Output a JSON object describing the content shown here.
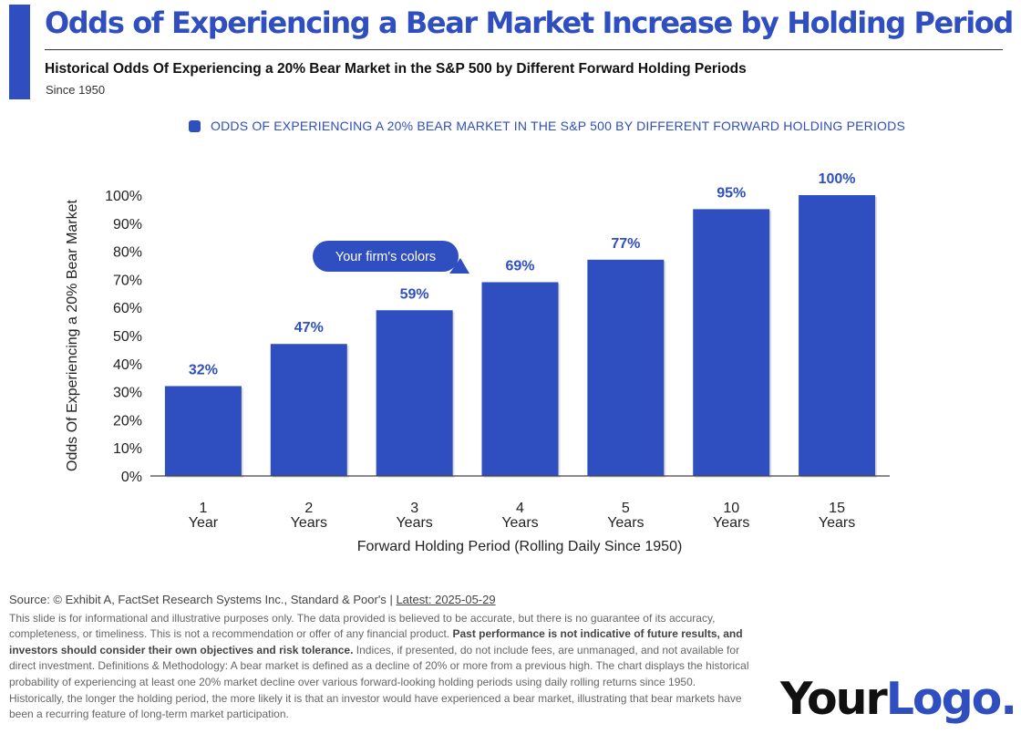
{
  "header": {
    "title": "Odds of Experiencing a Bear Market Increase by Holding Period",
    "subtitle": "Historical Odds Of Experiencing a 20% Bear Market in the S&P 500 by Different Forward Holding Periods",
    "since": "Since 1950"
  },
  "colors": {
    "accent": "#2f4ebf",
    "bar": "#2f4ebf",
    "text": "#222222"
  },
  "chart_data": {
    "type": "bar",
    "legend": "ODDS OF EXPERIENCING A 20% BEAR MARKET IN THE S&P 500 BY DIFFERENT FORWARD HOLDING PERIODS",
    "legend_position": "top",
    "categories": [
      [
        "1",
        "Year"
      ],
      [
        "2",
        "Years"
      ],
      [
        "3",
        "Years"
      ],
      [
        "4",
        "Years"
      ],
      [
        "5",
        "Years"
      ],
      [
        "10",
        "Years"
      ],
      [
        "15",
        "Years"
      ]
    ],
    "values": [
      32,
      47,
      59,
      69,
      77,
      95,
      100
    ],
    "value_labels": [
      "32%",
      "47%",
      "59%",
      "69%",
      "77%",
      "95%",
      "100%"
    ],
    "ylabel": "Odds Of Experiencing a 20% Bear Market",
    "xlabel": "Forward Holding Period (Rolling Daily Since 1950)",
    "ylim": [
      0,
      100
    ],
    "yticks": [
      "0%",
      "10%",
      "20%",
      "30%",
      "40%",
      "50%",
      "60%",
      "70%",
      "80%",
      "90%",
      "100%"
    ],
    "grid": false,
    "annotation": "Your firm's colors"
  },
  "footer": {
    "source": "Source: © Exhibit A, FactSet Research Systems Inc., Standard & Poor's",
    "separator": "|",
    "latest": "Latest: 2025-05-29",
    "disclaimer_1": "This slide is for informational and illustrative purposes only. The data provided is believed to be accurate, but there is no guarantee of its accuracy, completeness, or timeliness. This is not a recommendation or offer of any financial product.",
    "disclaimer_bold": "Past performance is not indicative of future results, and investors should consider their own objectives and risk tolerance.",
    "disclaimer_2": "Indices, if presented, do not include fees, are unmanaged, and not available for direct investment. Definitions & Methodology: A bear market is defined as a decline of 20% or more from a previous high. The chart displays the historical probability of experiencing at least one 20% market decline over various forward-looking holding periods using daily rolling returns since 1950. Historically, the longer the holding period, the more likely it is that an investor would have experienced a bear market, illustrating that bear markets have been a recurring feature of long-term market participation."
  },
  "logo": {
    "part1": "Your",
    "part2": "Logo."
  }
}
